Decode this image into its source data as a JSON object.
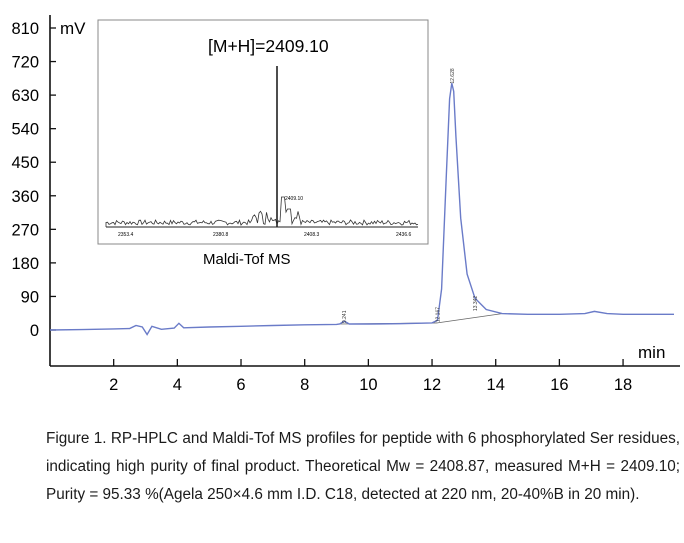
{
  "chart_data": {
    "type": "line",
    "x_unit": "min",
    "y_unit": "mV",
    "x_ticks": [
      2,
      4,
      6,
      8,
      10,
      12,
      14,
      16,
      18
    ],
    "y_ticks": [
      0,
      90,
      180,
      270,
      360,
      450,
      540,
      630,
      720,
      810
    ],
    "xlim": [
      0,
      19.6
    ],
    "ylim": [
      -80,
      830
    ],
    "grid": false,
    "peaks": [
      {
        "rt": 9.241,
        "label": "9.241",
        "height": 8
      },
      {
        "rt": 12.167,
        "label": "12.167",
        "height": 10
      },
      {
        "rt": 12.628,
        "label": "12.628",
        "height": 650
      },
      {
        "rt": 13.342,
        "label": "13.342",
        "height": 40
      }
    ],
    "series": [
      {
        "x": [
          0,
          1,
          2,
          2.5,
          2.7,
          2.9,
          3.05,
          3.2,
          3.5,
          3.9,
          4.05,
          4.2,
          5,
          6,
          7,
          8,
          9,
          9.1,
          9.24,
          9.4,
          9.6,
          10,
          11,
          12,
          12.17,
          12.3,
          12.45,
          12.55,
          12.62,
          12.68,
          12.75,
          12.9,
          13.1,
          13.35,
          13.7,
          14.2,
          15,
          16,
          16.8,
          17.1,
          17.5,
          18,
          19.6
        ],
        "y": [
          0,
          1,
          3,
          4,
          12,
          8,
          -12,
          10,
          2,
          5,
          18,
          6,
          8,
          10,
          12,
          14,
          15,
          16,
          24,
          16,
          16,
          16,
          17,
          19,
          26,
          110,
          420,
          620,
          662,
          640,
          520,
          300,
          150,
          85,
          55,
          44,
          42,
          42,
          44,
          50,
          44,
          42,
          42
        ]
      }
    ],
    "inset": {
      "annotation": "[M+H]=2409.10",
      "peak_label": "2409.10",
      "axis_ticks": [
        "2353.4",
        "2380.8",
        "2408.3",
        "2436.6"
      ],
      "caption": "Maldi-Tof MS"
    }
  },
  "caption": "Figure 1. RP-HPLC and Maldi-Tof MS profiles for peptide with 6 phosphorylated Ser residues, indicating high purity of final product. Theoretical Mw = 2408.87, measured M+H = 2409.10; Purity = 95.33 %(Agela 250×4.6 mm I.D. C18, detected at 220 nm, 20-40%B in 20 min).",
  "colors": {
    "trace": "#6a7bc8",
    "axis": "#111111",
    "baseline": "#666666",
    "inset_border": "#888888"
  }
}
